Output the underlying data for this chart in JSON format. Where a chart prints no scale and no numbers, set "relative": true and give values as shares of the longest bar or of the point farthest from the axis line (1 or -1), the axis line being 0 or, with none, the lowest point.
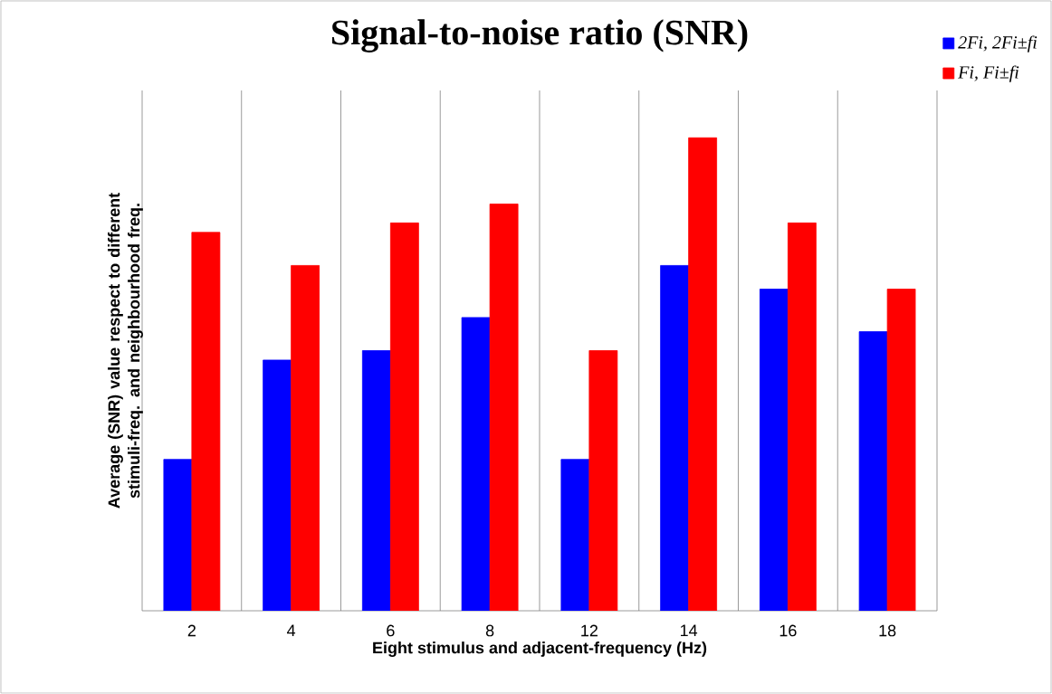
{
  "chart_data": {
    "type": "bar",
    "title": "Signal-to-noise ratio (SNR)",
    "xlabel": "Eight stimulus and adjacent-frequency (Hz)",
    "ylabel": "Average (SNR) value respect to different stimuli-freq. and neighbourhood freq.",
    "categories": [
      "2",
      "4",
      "6",
      "8",
      "12",
      "14",
      "16",
      "18"
    ],
    "relative": true,
    "grid": "x",
    "legend": "top right",
    "series": [
      {
        "name": "2Fi, 2Fi±fi",
        "color": "#0000ff",
        "values": [
          0.32,
          0.53,
          0.55,
          0.62,
          0.32,
          0.73,
          0.68,
          0.59
        ]
      },
      {
        "name": "Fi, Fi±fi",
        "color": "#ff0000",
        "values": [
          0.8,
          0.73,
          0.82,
          0.86,
          0.55,
          1,
          0.82,
          0.68
        ]
      }
    ]
  }
}
